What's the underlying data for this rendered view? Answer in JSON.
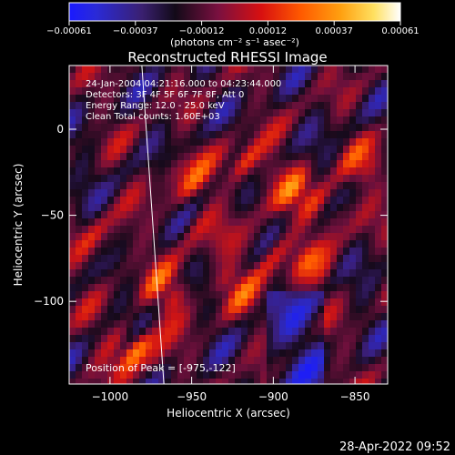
{
  "chart_data": {
    "type": "heatmap",
    "title": "Reconstructed RHESSI Image",
    "xlabel": "Heliocentric X (arcsec)",
    "ylabel": "Heliocentric Y (arcsec)",
    "xlim": [
      -1025,
      -830
    ],
    "ylim": [
      -148,
      37
    ],
    "xticks": [
      {
        "v": -1000,
        "label": "−1000"
      },
      {
        "v": -950,
        "label": "−950"
      },
      {
        "v": -900,
        "label": "−900"
      },
      {
        "v": -850,
        "label": "−850"
      }
    ],
    "yticks": [
      {
        "v": 0,
        "label": "0"
      },
      {
        "v": -50,
        "label": "−50"
      },
      {
        "v": -100,
        "label": "−100"
      }
    ],
    "colorbar": {
      "ticks": [
        "−0.00061",
        "−0.00037",
        "−0.00012",
        "0.00012",
        "0.00037",
        "0.00061"
      ],
      "unit": "(photons cm⁻² s⁻¹ asec⁻²)",
      "min": -0.00061,
      "max": 0.00061
    },
    "annotations": [
      "24-Jan-2004 04:21:16.000 to 04:23:44.000",
      "Detectors: 3F 4F 5F 6F 7F 8F, Att 0",
      "Energy Range: 12.0 - 25.0 keV",
      "Clean     Total counts: 1.60E+03"
    ],
    "peak_text": "Position of Peak = [-975,-122]",
    "limb": [
      [
        -980.5,
        37
      ],
      [
        -967,
        -148
      ]
    ],
    "grid": false
  },
  "footer": {
    "timestamp": "28-Apr-2022 09:52"
  },
  "colors": {
    "background": "#000000",
    "text": "#ffffff"
  }
}
